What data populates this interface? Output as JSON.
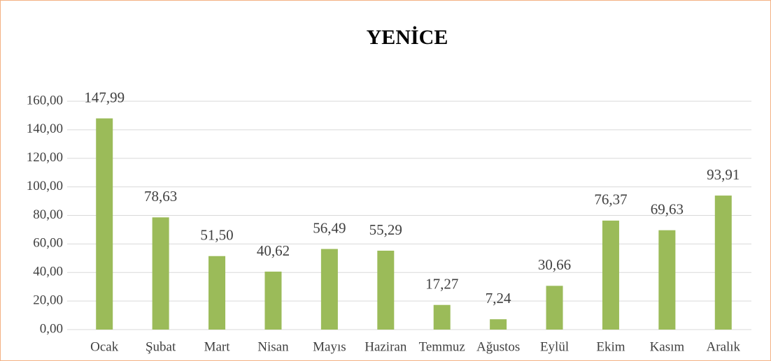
{
  "chart_data": {
    "type": "bar",
    "title": "YENİCE",
    "categories": [
      "Ocak",
      "Şubat",
      "Mart",
      "Nisan",
      "Mayıs",
      "Haziran",
      "Temmuz",
      "Ağustos",
      "Eylül",
      "Ekim",
      "Kasım",
      "Aralık"
    ],
    "values": [
      147.99,
      78.63,
      51.5,
      40.62,
      56.49,
      55.29,
      17.27,
      7.24,
      30.66,
      76.37,
      69.63,
      93.91
    ],
    "value_labels": [
      "147,99",
      "78,63",
      "51,50",
      "40,62",
      "56,49",
      "55,29",
      "17,27",
      "7,24",
      "30,66",
      "76,37",
      "69,63",
      "93,91"
    ],
    "color": "#9bbb59",
    "ylim": [
      0,
      160
    ],
    "yticks": [
      {
        "value": 0,
        "label": "0,00"
      },
      {
        "value": 20,
        "label": "20,00"
      },
      {
        "value": 40,
        "label": "40,00"
      },
      {
        "value": 60,
        "label": "60,00"
      },
      {
        "value": 80,
        "label": "80,00"
      },
      {
        "value": 100,
        "label": "100,00"
      },
      {
        "value": 120,
        "label": "120,00"
      },
      {
        "value": 140,
        "label": "140,00"
      },
      {
        "value": 160,
        "label": "160,00"
      }
    ],
    "grid": true
  }
}
